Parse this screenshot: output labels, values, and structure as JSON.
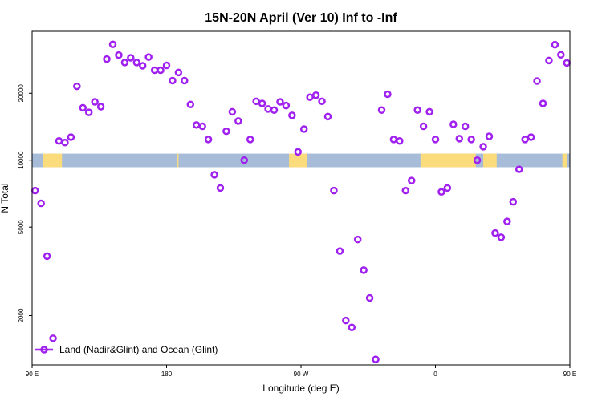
{
  "chart_data": {
    "type": "scatter",
    "title": "15N-20N April (Ver 10)   Inf to -Inf",
    "xlabel": "Longitude (deg E)",
    "ylabel": "N Total",
    "xlim": [
      90,
      450
    ],
    "ylim": [
      1200,
      38000
    ],
    "y_scale": "log",
    "x_ticks": [
      {
        "value": 90,
        "label": "90 E"
      },
      {
        "value": 180,
        "label": "180"
      },
      {
        "value": 270,
        "label": "90 W"
      },
      {
        "value": 360,
        "label": "0"
      },
      {
        "value": 450,
        "label": "90 E"
      },
      {
        "value": 540,
        "label": "180"
      }
    ],
    "y_ticks": [
      2000,
      5000,
      10000,
      20000
    ],
    "grid": false,
    "legend_position": "bottom-left",
    "marker_color": "#a020f0",
    "map_strip": {
      "y_range": [
        9300,
        10700
      ],
      "ocean_color": "#a7bcd9",
      "land_color": "#fbdc7c",
      "land_spans": [
        [
          97,
          110
        ],
        [
          187,
          188
        ],
        [
          262,
          274
        ],
        [
          350,
          387
        ],
        [
          392,
          401
        ],
        [
          445,
          448
        ],
        [
          462,
          474
        ]
      ]
    },
    "series": [
      {
        "name": "Land (Nadir&Glint) and Ocean (Glint)",
        "x": [
          92,
          96,
          100,
          104,
          108,
          112,
          116,
          120,
          124,
          128,
          132,
          136,
          140,
          144,
          148,
          152,
          156,
          160,
          164,
          168,
          172,
          176,
          180,
          184,
          188,
          192,
          196,
          200,
          204,
          208,
          212,
          216,
          220,
          224,
          228,
          232,
          236,
          240,
          244,
          248,
          252,
          256,
          260,
          264,
          268,
          272,
          276,
          280,
          284,
          288,
          292,
          296,
          300,
          304,
          308,
          312,
          316,
          320,
          324,
          328,
          332,
          336,
          340,
          344,
          348,
          352,
          356,
          360,
          364,
          368,
          372,
          376,
          380,
          384,
          388,
          392,
          396,
          400,
          404,
          408,
          412,
          416,
          420,
          424,
          428,
          432,
          436,
          440,
          444,
          448
        ],
        "y": [
          7300,
          6400,
          3700,
          1580,
          12200,
          12000,
          12700,
          21500,
          17200,
          16400,
          18300,
          17400,
          28500,
          33200,
          29700,
          27500,
          28900,
          27500,
          26600,
          29100,
          25400,
          25400,
          26700,
          22800,
          24800,
          22800,
          17800,
          14400,
          14200,
          12400,
          8600,
          7500,
          13500,
          16500,
          15000,
          10000,
          12400,
          18400,
          18000,
          17000,
          16800,
          18300,
          17600,
          15900,
          10900,
          13800,
          19200,
          19600,
          18400,
          15700,
          7300,
          3900,
          1900,
          1770,
          4400,
          3200,
          2400,
          1270,
          16800,
          19800,
          12400,
          12200,
          7300,
          8100,
          16800,
          14200,
          16500,
          12400,
          7200,
          7500,
          14500,
          12500,
          14200,
          12400,
          10000,
          11500,
          12800,
          4700,
          4500,
          5300,
          6500,
          9100,
          12400,
          12700,
          22700,
          18000,
          28100,
          33100,
          29800,
          27400
        ]
      }
    ]
  }
}
